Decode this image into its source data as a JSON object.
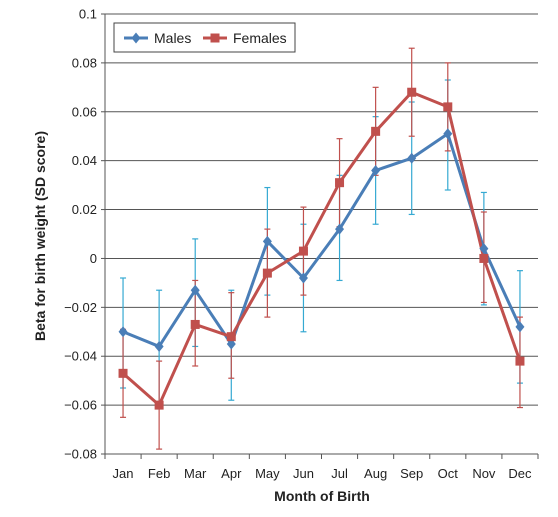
{
  "chart_data": {
    "type": "line",
    "title": "",
    "xlabel": "Month of Birth",
    "ylabel": "Beta for birth weight (SD score)",
    "ylim": [
      -0.08,
      0.1
    ],
    "yticks": [
      0.1,
      0.08,
      0.06,
      0.04,
      0.02,
      0,
      -0.02,
      -0.04,
      -0.06,
      -0.08
    ],
    "ytick_labels": [
      "0.1",
      "0.08",
      "0.06",
      "0.04",
      "0.02",
      "0",
      "−0.02",
      "−0.04",
      "−0.06",
      "−0.08"
    ],
    "categories": [
      "Jan",
      "Feb",
      "Mar",
      "Apr",
      "May",
      "Jun",
      "Jul",
      "Aug",
      "Sep",
      "Oct",
      "Nov",
      "Dec"
    ],
    "grid": "horizontal",
    "legend_position": "top-left",
    "series": [
      {
        "name": "Males",
        "color": "#4a7eb7",
        "error_color": "#35a9d2",
        "marker": "diamond",
        "values": [
          -0.03,
          -0.036,
          -0.013,
          -0.035,
          0.007,
          -0.008,
          0.012,
          0.036,
          0.041,
          0.051,
          0.004,
          -0.028
        ],
        "err_low": [
          -0.053,
          -0.059,
          -0.036,
          -0.058,
          -0.015,
          -0.03,
          -0.009,
          0.014,
          0.018,
          0.028,
          -0.019,
          -0.051
        ],
        "err_high": [
          -0.008,
          -0.013,
          0.008,
          -0.013,
          0.029,
          0.014,
          0.034,
          0.058,
          0.064,
          0.073,
          0.027,
          -0.005
        ]
      },
      {
        "name": "Females",
        "color": "#c0504d",
        "error_color": "#c0504d",
        "marker": "square",
        "values": [
          -0.047,
          -0.06,
          -0.027,
          -0.032,
          -0.006,
          0.003,
          0.031,
          0.052,
          0.068,
          0.062,
          0.0,
          -0.042
        ],
        "err_low": [
          -0.065,
          -0.078,
          -0.044,
          -0.049,
          -0.024,
          -0.015,
          0.013,
          0.034,
          0.05,
          0.044,
          -0.018,
          -0.061
        ],
        "err_high": [
          -0.029,
          -0.042,
          -0.009,
          -0.014,
          0.012,
          0.021,
          0.049,
          0.07,
          0.086,
          0.08,
          0.019,
          -0.024
        ]
      }
    ]
  }
}
